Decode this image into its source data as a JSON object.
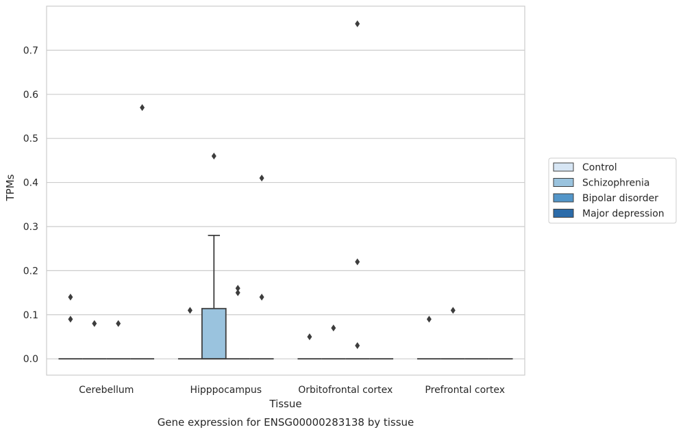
{
  "chart_data": {
    "type": "box",
    "title": "",
    "caption": "Gene expression for ENSG00000283138 by tissue",
    "xlabel": "Tissue",
    "ylabel": "TPMs",
    "ylim": [
      -0.037,
      0.8
    ],
    "yticks": [
      0.0,
      0.1,
      0.2,
      0.3,
      0.4,
      0.5,
      0.6,
      0.7
    ],
    "ytick_labels": [
      "0.0",
      "0.1",
      "0.2",
      "0.3",
      "0.4",
      "0.5",
      "0.6",
      "0.7"
    ],
    "grid": "horizontal",
    "legend_position": "right",
    "categories": [
      "Cerebellum",
      "Hipppocampus",
      "Orbitofrontal cortex",
      "Prefrontal cortex"
    ],
    "series": [
      {
        "name": "Control",
        "color": "#d7e6f4",
        "boxes": [
          {
            "category": "Cerebellum",
            "q1": 0.0,
            "median": 0.0,
            "q3": 0.0,
            "whisker_low": 0.0,
            "whisker_high": 0.0,
            "outliers": [
              0.14,
              0.09
            ]
          },
          {
            "category": "Hipppocampus",
            "q1": 0.0,
            "median": 0.0,
            "q3": 0.0,
            "whisker_low": 0.0,
            "whisker_high": 0.0,
            "outliers": [
              0.11
            ]
          },
          {
            "category": "Orbitofrontal cortex",
            "q1": 0.0,
            "median": 0.0,
            "q3": 0.0,
            "whisker_low": 0.0,
            "whisker_high": 0.0,
            "outliers": [
              0.05
            ]
          },
          {
            "category": "Prefrontal cortex",
            "q1": 0.0,
            "median": 0.0,
            "q3": 0.0,
            "whisker_low": 0.0,
            "whisker_high": 0.0,
            "outliers": [
              0.09
            ]
          }
        ]
      },
      {
        "name": "Schizophrenia",
        "color": "#9ac3de",
        "boxes": [
          {
            "category": "Cerebellum",
            "q1": 0.0,
            "median": 0.0,
            "q3": 0.0,
            "whisker_low": 0.0,
            "whisker_high": 0.0,
            "outliers": [
              0.08
            ]
          },
          {
            "category": "Hipppocampus",
            "q1": 0.0,
            "median": 0.0,
            "q3": 0.114,
            "whisker_low": 0.0,
            "whisker_high": 0.28,
            "outliers": [
              0.46
            ]
          },
          {
            "category": "Orbitofrontal cortex",
            "q1": 0.0,
            "median": 0.0,
            "q3": 0.0,
            "whisker_low": 0.0,
            "whisker_high": 0.0,
            "outliers": [
              0.07
            ]
          },
          {
            "category": "Prefrontal cortex",
            "q1": 0.0,
            "median": 0.0,
            "q3": 0.0,
            "whisker_low": 0.0,
            "whisker_high": 0.0,
            "outliers": [
              0.11
            ]
          }
        ]
      },
      {
        "name": "Bipolar disorder",
        "color": "#5396c9",
        "boxes": [
          {
            "category": "Cerebellum",
            "q1": 0.0,
            "median": 0.0,
            "q3": 0.0,
            "whisker_low": 0.0,
            "whisker_high": 0.0,
            "outliers": [
              0.08
            ]
          },
          {
            "category": "Hipppocampus",
            "q1": 0.0,
            "median": 0.0,
            "q3": 0.0,
            "whisker_low": 0.0,
            "whisker_high": 0.0,
            "outliers": [
              0.16,
              0.15
            ]
          },
          {
            "category": "Orbitofrontal cortex",
            "q1": 0.0,
            "median": 0.0,
            "q3": 0.0,
            "whisker_low": 0.0,
            "whisker_high": 0.0,
            "outliers": [
              0.76,
              0.22,
              0.03
            ]
          },
          {
            "category": "Prefrontal cortex",
            "q1": 0.0,
            "median": 0.0,
            "q3": 0.0,
            "whisker_low": 0.0,
            "whisker_high": 0.0,
            "outliers": []
          }
        ]
      },
      {
        "name": "Major depression",
        "color": "#2b6ba9",
        "boxes": [
          {
            "category": "Cerebellum",
            "q1": 0.0,
            "median": 0.0,
            "q3": 0.0,
            "whisker_low": 0.0,
            "whisker_high": 0.0,
            "outliers": [
              0.57
            ]
          },
          {
            "category": "Hipppocampus",
            "q1": 0.0,
            "median": 0.0,
            "q3": 0.0,
            "whisker_low": 0.0,
            "whisker_high": 0.0,
            "outliers": [
              0.41,
              0.14
            ]
          },
          {
            "category": "Orbitofrontal cortex",
            "q1": 0.0,
            "median": 0.0,
            "q3": 0.0,
            "whisker_low": 0.0,
            "whisker_high": 0.0,
            "outliers": []
          },
          {
            "category": "Prefrontal cortex",
            "q1": 0.0,
            "median": 0.0,
            "q3": 0.0,
            "whisker_low": 0.0,
            "whisker_high": 0.0,
            "outliers": []
          }
        ]
      }
    ]
  }
}
